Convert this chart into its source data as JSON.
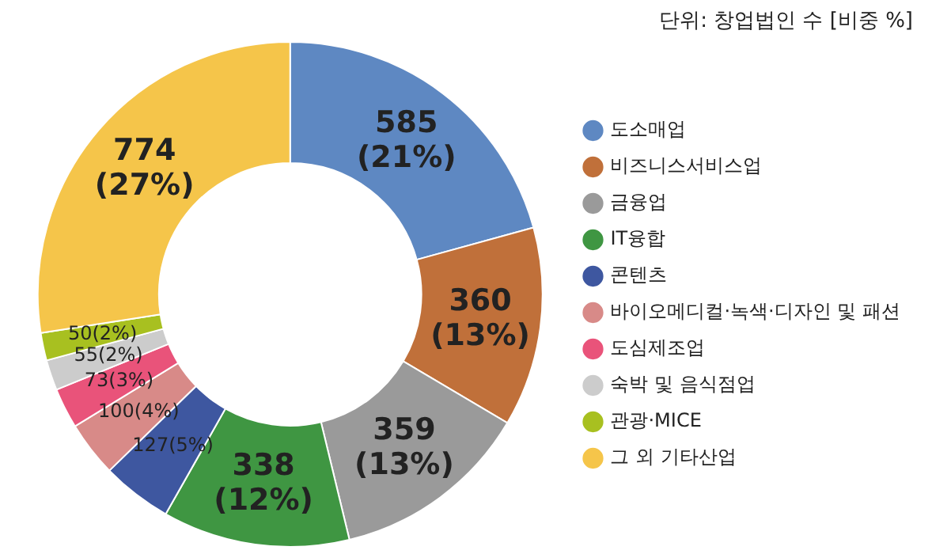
{
  "chart_data": {
    "type": "donut",
    "subtitle": "단위: 창업법인 수 [비중 %]",
    "categories": [
      "도소매업",
      "비즈니스서비스업",
      "금융업",
      "IT융합",
      "콘텐츠",
      "바이오메디컬·녹색·디자인 및 패션",
      "도심제조업",
      "숙박 및 음식점업",
      "관광·MICE",
      "그 외 기타산업"
    ],
    "values": [
      585,
      360,
      359,
      338,
      127,
      100,
      73,
      55,
      50,
      774
    ],
    "value_labels": [
      "585 (21%)",
      "360 (13%)",
      "359 (13%)",
      "338 (12%)",
      "127(5%)",
      "100(4%)",
      "73(3%)",
      "55(2%)",
      "50(2%)",
      "774 (27%)"
    ],
    "colors": [
      "#5e88c2",
      "#c0703a",
      "#9a9a9a",
      "#3f9642",
      "#3e57a0",
      "#d88a88",
      "#e9537a",
      "#cccccc",
      "#a8c020",
      "#f5c54a"
    ],
    "legend": "right"
  }
}
